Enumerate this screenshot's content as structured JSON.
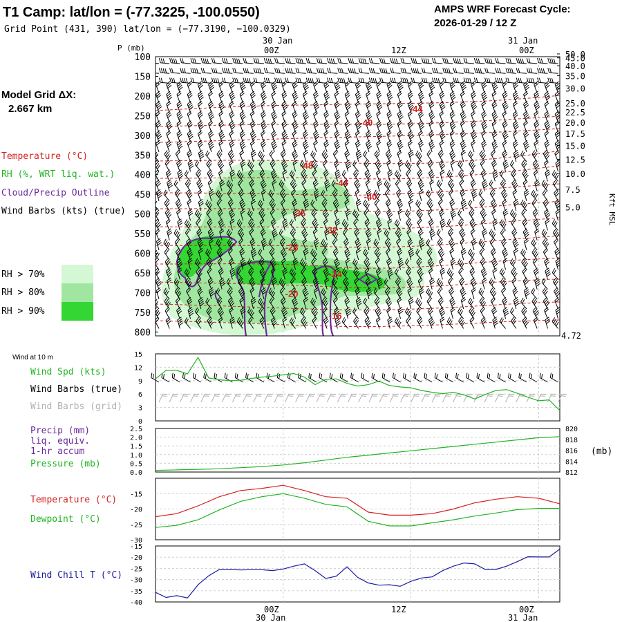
{
  "header": {
    "title": "T1 Camp:  lat/lon = (-77.3225, -100.0550)",
    "grid_point": "Grid Point (431, 390) lat/lon = (−77.3190, −100.0329)",
    "cycle_label": "AMPS WRF Forecast Cycle:",
    "cycle_value": "2026-01-29 / 12  Z"
  },
  "model_grid": {
    "label": "Model Grid ΔX:",
    "value": "2.667 km"
  },
  "time_axis": {
    "top_labels": [
      {
        "date": "30 Jan",
        "hour": "00Z",
        "hours_from_start": 12
      },
      {
        "date": "",
        "hour": "12Z",
        "hours_from_start": 24
      },
      {
        "date": "31 Jan",
        "hour": "00Z",
        "hours_from_start": 36
      }
    ],
    "bottom_labels": [
      {
        "hour": "00Z",
        "date": "30 Jan",
        "hours_from_start": 12
      },
      {
        "hour": "12Z",
        "date": "",
        "hours_from_start": 24
      },
      {
        "hour": "00Z",
        "date": "31 Jan",
        "hours_from_start": 36
      }
    ],
    "range_hours": [
      0,
      38
    ]
  },
  "legend_left": {
    "temperature": "Temperature (°C)",
    "rh": "RH (%, WRT liq. wat.)",
    "cloud": "Cloud/Precip Outline",
    "wind": "Wind Barbs (kts) (true)",
    "rh_levels": [
      "RH > 70%",
      "RH > 80%",
      "RH > 90%"
    ],
    "colors": {
      "temperature": "#d42020",
      "rh": "#22b422",
      "cloud": "#6a2a9a",
      "wind": "#000000",
      "rh70": "#d4f7d4",
      "rh80": "#a0e6a0",
      "rh90": "#33d633"
    }
  },
  "chart_data": [
    {
      "type": "area",
      "panel": "Vertical profile cross-section",
      "ylabel": "P (mb)",
      "ylabel_right": "Kft MSL",
      "ylim": [
        100,
        810
      ],
      "y_ticks": [
        "100",
        "150",
        "200",
        "250",
        "300",
        "350",
        "400",
        "450",
        "500",
        "550",
        "600",
        "650",
        "700",
        "750",
        "800"
      ],
      "right_ticks": [
        "50.0",
        "45.0",
        "40.0",
        "35.0",
        "30.0",
        "25.0",
        "22.5",
        "20.0",
        "17.5",
        "15.0",
        "12.5",
        "10.0",
        "7.5",
        "5.0"
      ],
      "right_ticks_p": [
        93,
        103,
        123,
        148,
        180,
        218,
        241,
        267,
        295,
        326,
        361,
        397,
        437,
        482
      ],
      "right_extra": "4.72",
      "isotherm_labels": [
        {
          "text": "-44",
          "x": 24.5,
          "p": 232
        },
        {
          "text": "-40",
          "x": 19.8,
          "p": 267
        },
        {
          "text": "-48",
          "x": 14.2,
          "p": 376
        },
        {
          "text": "-44",
          "x": 17.5,
          "p": 420
        },
        {
          "text": "-40",
          "x": 20.2,
          "p": 455
        },
        {
          "text": "-36",
          "x": 13.5,
          "p": 497
        },
        {
          "text": "-32",
          "x": 16.5,
          "p": 540
        },
        {
          "text": "-28",
          "x": 12.8,
          "p": 584
        },
        {
          "text": "-24",
          "x": 16.9,
          "p": 652
        },
        {
          "text": "-20",
          "x": 12.8,
          "p": 702
        },
        {
          "text": "-16",
          "x": 16.9,
          "p": 758
        }
      ],
      "grid": true
    },
    {
      "type": "line",
      "panel": "Wind at 10 m",
      "title": "Wind at 10 m",
      "labels": [
        "Wind Spd (kts)",
        "Wind Barbs (true)",
        "Wind Barbs (grid)"
      ],
      "ylim": [
        0,
        15
      ],
      "y_ticks": [
        "0",
        "3",
        "6",
        "9",
        "12",
        "15"
      ],
      "series": [
        {
          "name": "Wind Spd (kts)",
          "color": "#22b422",
          "x": [
            0,
            1,
            2,
            3,
            4,
            5,
            6,
            7,
            8,
            9,
            10,
            11,
            12,
            13,
            14,
            15,
            16,
            17,
            18,
            19,
            20,
            21,
            22,
            23,
            24,
            25,
            26,
            27,
            28,
            29,
            30,
            31,
            32,
            33,
            34,
            35,
            36,
            37,
            38
          ],
          "values": [
            9.4,
            11.3,
            11.3,
            10.5,
            14.2,
            9.6,
            9.2,
            9,
            9.1,
            9.5,
            9.8,
            10,
            10.3,
            10.6,
            9.8,
            8.1,
            9.3,
            9.4,
            8.4,
            7.8,
            8.1,
            8.9,
            7.9,
            7.6,
            7.4,
            6.8,
            6.4,
            6.1,
            6.4,
            5.8,
            4.9,
            5.9,
            6.8,
            7,
            6.2,
            5.3,
            4.5,
            4.7,
            2.3
          ]
        }
      ],
      "grid": true
    },
    {
      "type": "line",
      "panel": "Precip / Pressure",
      "labels": [
        "Precip (mm)",
        "liq. equiv.",
        "1-hr accum",
        "Pressure (mb)"
      ],
      "ylim": [
        0,
        2.5
      ],
      "y_ticks": [
        "0.0",
        "0.5",
        "1.0",
        "1.5",
        "2.0",
        "2.5"
      ],
      "right_ticks": [
        "812",
        "814",
        "816",
        "818",
        "820"
      ],
      "right_unit": "(mb)",
      "series": [
        {
          "name": "Pressure (mb)",
          "color": "#22b422",
          "x": [
            0,
            2,
            4,
            6,
            8,
            10,
            12,
            14,
            16,
            18,
            20,
            22,
            24,
            26,
            28,
            30,
            32,
            34,
            36,
            38
          ],
          "values": [
            812.3,
            812.4,
            812.5,
            812.6,
            812.8,
            813.0,
            813.3,
            813.7,
            814.2,
            814.7,
            815.1,
            815.5,
            815.9,
            816.3,
            816.7,
            817.1,
            817.5,
            817.9,
            818.3,
            818.5
          ]
        },
        {
          "name": "Precip (mm)",
          "color": "#6a2a9a",
          "x": [
            0,
            38
          ],
          "values": [
            0,
            0
          ]
        }
      ],
      "grid": true
    },
    {
      "type": "line",
      "panel": "Temperature / Dewpoint",
      "labels": [
        "Temperature (°C)",
        "Dewpoint (°C)"
      ],
      "ylim": [
        -30,
        -10
      ],
      "y_ticks": [
        "-30",
        "-25",
        "-20",
        "-15"
      ],
      "series": [
        {
          "name": "Temperature (°C)",
          "color": "#d42020",
          "x": [
            0,
            2,
            4,
            6,
            8,
            10,
            12,
            14,
            16,
            18,
            20,
            22,
            24,
            26,
            28,
            30,
            32,
            34,
            36,
            38
          ],
          "values": [
            -22.5,
            -21.5,
            -19,
            -16,
            -14,
            -13.3,
            -12.3,
            -14,
            -16,
            -16.5,
            -21,
            -22,
            -22,
            -21.5,
            -20,
            -18,
            -16.8,
            -16,
            -16.5,
            -18.3
          ]
        },
        {
          "name": "Dewpoint (°C)",
          "color": "#22b422",
          "x": [
            0,
            2,
            4,
            6,
            8,
            10,
            12,
            14,
            16,
            18,
            20,
            22,
            24,
            26,
            28,
            30,
            32,
            34,
            36,
            38
          ],
          "values": [
            -26,
            -25.3,
            -23.5,
            -20.3,
            -17.5,
            -16,
            -15,
            -16.5,
            -18.5,
            -19.3,
            -24,
            -25.5,
            -25.5,
            -24.5,
            -23.5,
            -22.3,
            -21.3,
            -20.2,
            -19.8,
            -19.8
          ]
        }
      ],
      "grid": true
    },
    {
      "type": "line",
      "panel": "Wind Chill",
      "labels": [
        "Wind Chill T (°C)"
      ],
      "ylim": [
        -40,
        -15
      ],
      "y_ticks": [
        "-40",
        "-35",
        "-30",
        "-25",
        "-20",
        "-15"
      ],
      "series": [
        {
          "name": "Wind Chill T (°C)",
          "color": "#1a1aa0",
          "x": [
            0,
            1,
            2,
            3,
            4,
            5,
            6,
            7,
            8,
            9,
            10,
            11,
            12,
            13,
            14,
            15,
            16,
            17,
            18,
            19,
            20,
            21,
            22,
            23,
            24,
            25,
            26,
            27,
            28,
            29,
            30,
            31,
            32,
            33,
            34,
            35,
            36,
            37,
            38
          ],
          "values": [
            -35.7,
            -38,
            -37.2,
            -38.2,
            -32.3,
            -28.3,
            -25.5,
            -25.5,
            -25.7,
            -25.6,
            -25.6,
            -26,
            -25.3,
            -24,
            -23,
            -26,
            -29.5,
            -28.5,
            -24.3,
            -29,
            -31.5,
            -32.5,
            -32.3,
            -33,
            -30.8,
            -29.3,
            -28.8,
            -26,
            -24,
            -22.6,
            -23,
            -25.5,
            -25.5,
            -24,
            -22,
            -19.8,
            -19.9,
            -19.9,
            -16.4
          ]
        }
      ],
      "grid": true
    }
  ]
}
